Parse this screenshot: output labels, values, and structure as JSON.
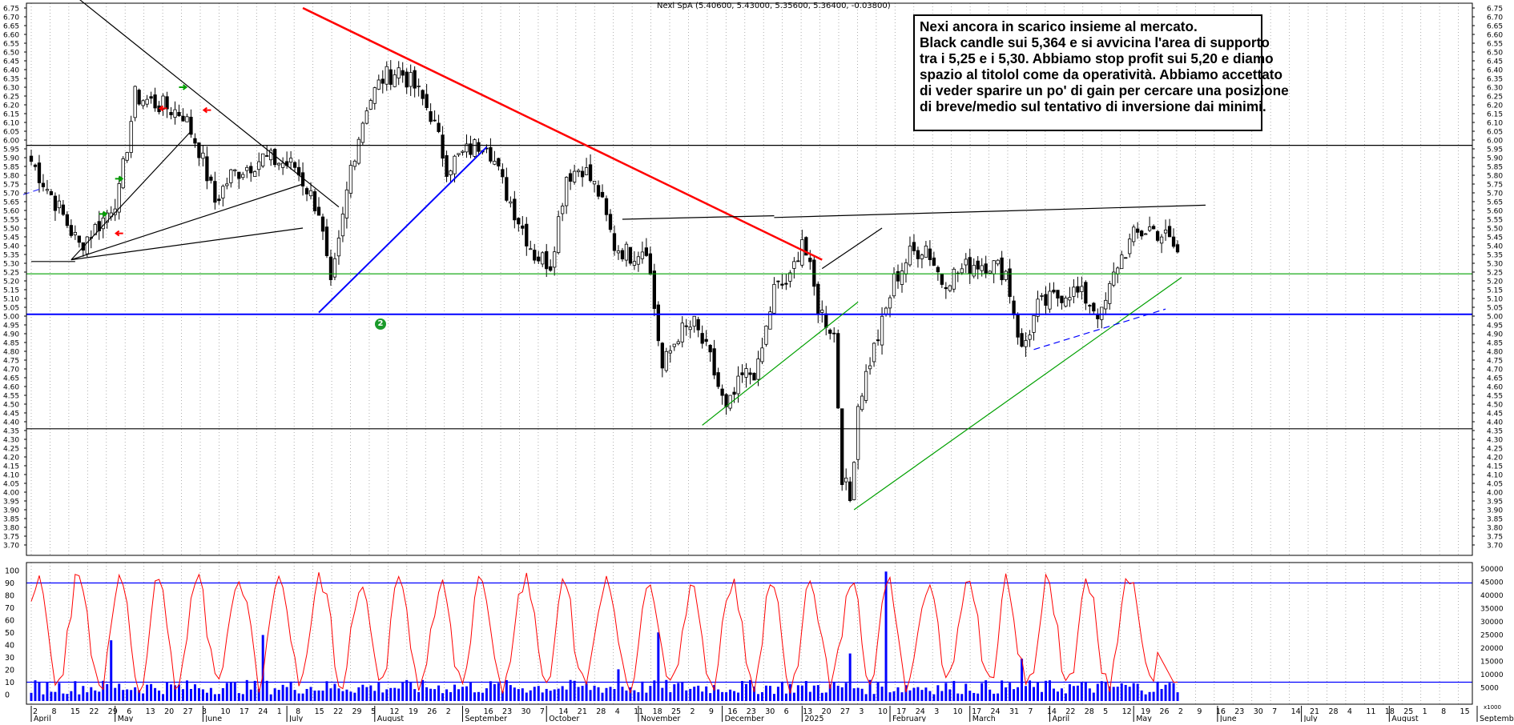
{
  "chart_title": "Nexi SpA (5.40600, 5.43000, 5.35600, 5.36400, -0.03800)",
  "note": {
    "lines": [
      "Nexi ancora in scarico insieme al mercato.",
      "Black candle sui 5,364 e si avvicina l'area di supporto",
      "tra i 5,25 e i 5,30. Abbiamo stop profit sui 5,20 e diamo",
      "spazio al titolol come da operatività. Abbiamo accettato",
      "di veder sparire un po' di gain per cercare una posizione",
      "di breve/medio sul tentativo di inversione dai minimi."
    ]
  },
  "badge_label": "2",
  "chart_data": [
    {
      "type": "candlestick",
      "title": "Nexi SpA (5.40600, 5.43000, 5.35600, 5.36400, -0.03800)",
      "ylim": [
        3.65,
        6.75
      ],
      "y_ticks": [
        "6.75",
        "6.70",
        "6.65",
        "6.60",
        "6.55",
        "6.50",
        "6.45",
        "6.40",
        "6.35",
        "6.30",
        "6.25",
        "6.20",
        "6.15",
        "6.10",
        "6.05",
        "6.00",
        "5.95",
        "5.90",
        "5.85",
        "5.80",
        "5.75",
        "5.70",
        "5.65",
        "5.60",
        "5.55",
        "5.50",
        "5.45",
        "5.40",
        "5.35",
        "5.30",
        "5.25",
        "5.20",
        "5.15",
        "5.10",
        "5.05",
        "5.00",
        "4.95",
        "4.90",
        "4.85",
        "4.80",
        "4.75",
        "4.70",
        "4.65",
        "4.60",
        "4.55",
        "4.50",
        "4.45",
        "4.40",
        "4.35",
        "4.30",
        "4.25",
        "4.20",
        "4.15",
        "4.10",
        "4.05",
        "4.00",
        "3.95",
        "3.90",
        "3.85",
        "3.80",
        "3.75",
        "3.70"
      ],
      "last_bar": {
        "open": 5.406,
        "high": 5.43,
        "low": 5.356,
        "close": 5.364,
        "change": -0.038
      },
      "close_path": [
        [
          0,
          5.88
        ],
        [
          6,
          5.65
        ],
        [
          12,
          5.4
        ],
        [
          18,
          5.55
        ],
        [
          22,
          5.7
        ],
        [
          26,
          6.25
        ],
        [
          32,
          6.2
        ],
        [
          38,
          6.15
        ],
        [
          42,
          5.95
        ],
        [
          46,
          5.65
        ],
        [
          50,
          5.8
        ],
        [
          58,
          5.9
        ],
        [
          66,
          5.85
        ],
        [
          72,
          5.6
        ],
        [
          75,
          5.15
        ],
        [
          77,
          5.4
        ],
        [
          80,
          5.85
        ],
        [
          84,
          6.2
        ],
        [
          88,
          6.35
        ],
        [
          92,
          6.4
        ],
        [
          96,
          6.3
        ],
        [
          100,
          6.15
        ],
        [
          104,
          5.85
        ],
        [
          110,
          5.95
        ],
        [
          114,
          6.0
        ],
        [
          118,
          5.75
        ],
        [
          122,
          5.55
        ],
        [
          126,
          5.35
        ],
        [
          130,
          5.3
        ],
        [
          134,
          5.8
        ],
        [
          138,
          5.85
        ],
        [
          142,
          5.7
        ],
        [
          146,
          5.4
        ],
        [
          150,
          5.35
        ],
        [
          154,
          5.4
        ],
        [
          158,
          4.7
        ],
        [
          162,
          4.9
        ],
        [
          166,
          4.95
        ],
        [
          170,
          4.75
        ],
        [
          174,
          4.45
        ],
        [
          178,
          4.65
        ],
        [
          182,
          4.7
        ],
        [
          186,
          5.15
        ],
        [
          190,
          5.2
        ],
        [
          193,
          5.45
        ],
        [
          197,
          5.05
        ],
        [
          201,
          4.9
        ],
        [
          203,
          4.1
        ],
        [
          205,
          3.95
        ],
        [
          207,
          4.5
        ],
        [
          210,
          4.75
        ],
        [
          213,
          4.95
        ],
        [
          216,
          5.2
        ],
        [
          220,
          5.35
        ],
        [
          224,
          5.4
        ],
        [
          228,
          5.2
        ],
        [
          232,
          5.25
        ],
        [
          236,
          5.3
        ],
        [
          240,
          5.3
        ],
        [
          244,
          5.25
        ],
        [
          248,
          4.8
        ],
        [
          252,
          5.05
        ],
        [
          256,
          5.1
        ],
        [
          260,
          5.15
        ],
        [
          264,
          5.1
        ],
        [
          268,
          5.0
        ],
        [
          272,
          5.3
        ],
        [
          276,
          5.45
        ],
        [
          280,
          5.5
        ],
        [
          284,
          5.45
        ],
        [
          287,
          5.364
        ]
      ],
      "horizontal_levels": [
        {
          "value": 5.97,
          "color": "#000000"
        },
        {
          "value": 5.24,
          "color": "#00a000"
        },
        {
          "value": 5.01,
          "color": "#0000ff"
        },
        {
          "value": 4.36,
          "color": "#000000"
        }
      ],
      "trendlines": [
        {
          "from": [
            -2,
            5.69
          ],
          "to": [
            2,
            5.72
          ],
          "color": "#3333ff",
          "dashed": true
        },
        {
          "from": [
            12,
            6.8
          ],
          "to": [
            77,
            5.62
          ],
          "color": "#000000"
        },
        {
          "from": [
            10,
            5.32
          ],
          "to": [
            40,
            6.05
          ],
          "color": "#000000"
        },
        {
          "from": [
            10,
            5.32
          ],
          "to": [
            68,
            5.75
          ],
          "color": "#000000"
        },
        {
          "from": [
            10,
            5.32
          ],
          "to": [
            68,
            5.5
          ],
          "color": "#000000"
        },
        {
          "from": [
            0,
            5.31
          ],
          "to": [
            11,
            5.31
          ],
          "color": "#000000"
        },
        {
          "from": [
            68,
            6.75
          ],
          "to": [
            198,
            5.32
          ],
          "color": "#ff0000",
          "width": 2.5
        },
        {
          "from": [
            72,
            5.02
          ],
          "to": [
            114,
            5.96
          ],
          "color": "#0000ff",
          "width": 2
        },
        {
          "from": [
            148,
            5.55
          ],
          "to": [
            186,
            5.57
          ],
          "color": "#000000"
        },
        {
          "from": [
            186,
            5.56
          ],
          "to": [
            294,
            5.63
          ],
          "color": "#000000"
        },
        {
          "from": [
            198,
            5.27
          ],
          "to": [
            213,
            5.5
          ],
          "color": "#000000"
        },
        {
          "from": [
            168,
            4.38
          ],
          "to": [
            207,
            5.08
          ],
          "color": "#00a000"
        },
        {
          "from": [
            206,
            3.9
          ],
          "to": [
            288,
            5.22
          ],
          "color": "#00a000"
        },
        {
          "from": [
            251,
            4.81
          ],
          "to": [
            284,
            5.04
          ],
          "color": "#0000ff",
          "dashed": true
        }
      ],
      "arrows": [
        {
          "bar": 22,
          "value": 5.78,
          "color": "#00a000",
          "dir": "right"
        },
        {
          "bar": 18,
          "value": 5.58,
          "color": "#00a000",
          "dir": "right"
        },
        {
          "bar": 38,
          "value": 6.3,
          "color": "#00a000",
          "dir": "right"
        },
        {
          "bar": 33,
          "value": 6.18,
          "color": "#ff0000",
          "dir": "left"
        },
        {
          "bar": 44,
          "value": 6.17,
          "color": "#ff0000",
          "dir": "left"
        },
        {
          "bar": 22,
          "value": 5.47,
          "color": "#ff0000",
          "dir": "left"
        }
      ]
    },
    {
      "type": "line",
      "series": [
        {
          "name": "",
          "values": []
        }
      ],
      "ylim": [
        0,
        100
      ],
      "y_ticks_left": [
        "100",
        "90",
        "80",
        "70",
        "60",
        "50",
        "40",
        "30",
        "20",
        "10",
        "0"
      ],
      "levels": [
        90,
        10
      ],
      "shape": "oscillator between 0 and 100 with reference lines at 90 and 10",
      "last_value": 10
    },
    {
      "type": "bar",
      "name": "volume",
      "ylim": [
        0,
        50000
      ],
      "y_ticks_right": [
        "50000",
        "45000",
        "40000",
        "35000",
        "30000",
        "25000",
        "20000",
        "15000",
        "10000",
        "5000"
      ],
      "unit_label": "x1000",
      "spikes": [
        [
          20,
          23000
        ],
        [
          58,
          25000
        ],
        [
          147,
          12000
        ],
        [
          157,
          26000
        ],
        [
          205,
          18000
        ],
        [
          214,
          49000
        ],
        [
          248,
          16000
        ]
      ]
    }
  ],
  "x_axis": {
    "day_ticks": [
      "2",
      "8",
      "15",
      "22",
      "29",
      "6",
      "13",
      "20",
      "27",
      "3",
      "10",
      "17",
      "24",
      "1",
      "8",
      "15",
      "22",
      "29",
      "5",
      "12",
      "19",
      "26",
      "2",
      "9",
      "16",
      "23",
      "30",
      "7",
      "14",
      "21",
      "28",
      "4",
      "11",
      "18",
      "25",
      "2",
      "9",
      "16",
      "23",
      "30",
      "6",
      "13",
      "20",
      "27",
      "3",
      "10",
      "17",
      "24",
      "3",
      "10",
      "17",
      "24",
      "31",
      "7",
      "14",
      "22",
      "28",
      "5",
      "12",
      "19",
      "26",
      "2",
      "9",
      "16",
      "23",
      "30",
      "7",
      "14",
      "21",
      "28",
      "4",
      "11",
      "18",
      "25",
      "1",
      "8",
      "15"
    ],
    "months": [
      {
        "label": "April",
        "bar": 0
      },
      {
        "label": "May",
        "bar": 21
      },
      {
        "label": "June",
        "bar": 43
      },
      {
        "label": "July",
        "bar": 64
      },
      {
        "label": "August",
        "bar": 86
      },
      {
        "label": "September",
        "bar": 108
      },
      {
        "label": "October",
        "bar": 129
      },
      {
        "label": "November",
        "bar": 152
      },
      {
        "label": "December",
        "bar": 173
      },
      {
        "label": "2025",
        "bar": 193
      },
      {
        "label": "February",
        "bar": 215
      },
      {
        "label": "March",
        "bar": 235
      },
      {
        "label": "April",
        "bar": 255
      },
      {
        "label": "May",
        "bar": 276
      },
      {
        "label": "June",
        "bar": 297
      },
      {
        "label": "July",
        "bar": 318
      },
      {
        "label": "August",
        "bar": 340
      },
      {
        "label": "September",
        "bar": 362
      }
    ]
  },
  "colors": {
    "candle_up_body": "#ffffff",
    "candle_down_body": "#000000",
    "oscillator": "#ff0000",
    "level_lines": "#0000ff",
    "volume": "#0000ff",
    "grid": "#9a9a9a",
    "panel_border": "#000000"
  }
}
